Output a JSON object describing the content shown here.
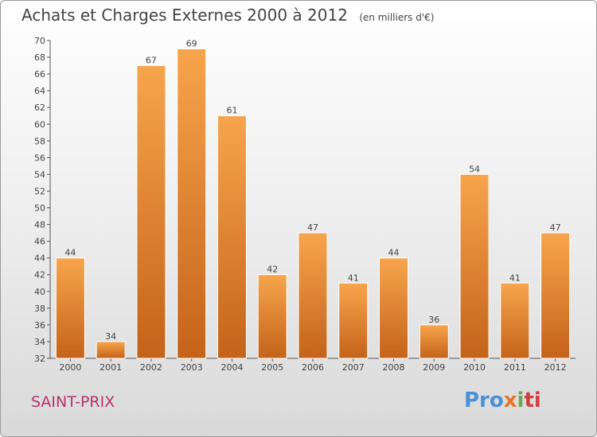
{
  "header": {
    "title": "Achats et Charges Externes 2000 à 2012",
    "unit": "(en milliers d'€)"
  },
  "footer": {
    "place": "SAINT-PRIX",
    "logo_parts": [
      "Pro",
      "x",
      "i",
      "ti"
    ]
  },
  "colors": {
    "bar_top": "#f7a54d",
    "bar_bottom": "#c4631a",
    "title": "#444444",
    "place": "#b8336a"
  },
  "chart_data": {
    "type": "bar",
    "categories": [
      "2000",
      "2001",
      "2002",
      "2003",
      "2004",
      "2005",
      "2006",
      "2007",
      "2008",
      "2009",
      "2010",
      "2011",
      "2012"
    ],
    "values": [
      44,
      34,
      67,
      69,
      61,
      42,
      47,
      41,
      44,
      36,
      54,
      41,
      47
    ],
    "ylim": [
      32,
      70
    ],
    "yticks": [
      32,
      34,
      36,
      38,
      40,
      42,
      44,
      46,
      48,
      50,
      52,
      54,
      56,
      58,
      60,
      62,
      64,
      66,
      68,
      70
    ],
    "grid": false,
    "data_labels": true
  }
}
